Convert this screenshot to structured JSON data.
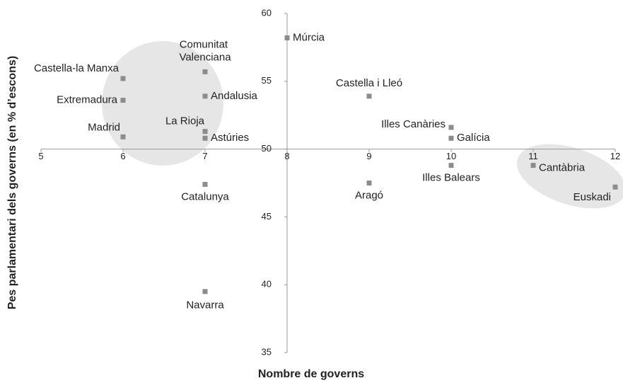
{
  "chart_data": {
    "type": "scatter",
    "x_label": "Nombre de governs",
    "y_label": "Pes parlamentari dels governs (en % d’escons)",
    "color": "#8c8c8c",
    "xlim": [
      5,
      12
    ],
    "xticks": [
      5,
      6,
      7,
      8,
      9,
      10,
      11,
      12
    ],
    "ylim": [
      35,
      60
    ],
    "yticks": [
      35,
      40,
      45,
      50,
      55,
      60
    ],
    "grid": false,
    "series": [
      {
        "name": null,
        "color": "#8c8c8c",
        "labels": [
          "Múrcia",
          "Castella-la Manxa",
          "Extremadura",
          "Madrid",
          "Comunitat Valenciana",
          "Andalusia",
          "La Rioja",
          "Astúries",
          "Catalunya",
          "Navarra",
          "Castella i Lleó",
          "Illes Canàries",
          "Galícia",
          "Illes Balears",
          "Aragó",
          "Cantàbria",
          "Euskadi"
        ],
        "x": [
          8,
          6,
          6,
          6,
          7,
          7,
          7,
          7,
          7,
          7,
          9,
          10,
          10,
          10,
          9,
          11,
          12
        ],
        "values": [
          58.2,
          55.2,
          53.6,
          50.9,
          55.7,
          53.9,
          51.3,
          50.8,
          47.4,
          39.5,
          53.9,
          51.6,
          50.8,
          48.8,
          47.5,
          48.8,
          47.2
        ]
      }
    ]
  }
}
